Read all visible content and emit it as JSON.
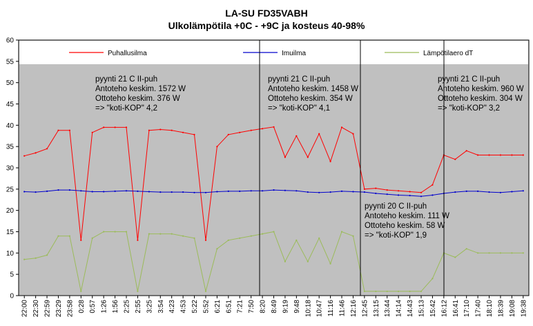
{
  "chart_data": {
    "type": "line",
    "title": "LA-SU FD35VABH",
    "subtitle": "Ulkolämpötila +0C - +9C ja kosteus 40-98%",
    "ylim": [
      0,
      60
    ],
    "yticks": [
      0,
      5,
      10,
      15,
      20,
      25,
      30,
      35,
      40,
      45,
      50,
      55,
      60
    ],
    "grid": false,
    "plot_background": "#c0c0c0",
    "legend_placement": "top",
    "categories": [
      "22:00",
      "22:30",
      "22:59",
      "23:29",
      "23:58",
      "0:28",
      "0:57",
      "1:26",
      "1:56",
      "2:25",
      "2:55",
      "3:25",
      "3:54",
      "4:23",
      "4:53",
      "5:22",
      "5:52",
      "6:21",
      "6:51",
      "7:21",
      "7:50",
      "8:20",
      "8:49",
      "9:19",
      "9:48",
      "10:18",
      "10:47",
      "11:16",
      "11:46",
      "12:16",
      "12:45",
      "13:15",
      "13:44",
      "14:14",
      "14:43",
      "15:13",
      "15:42",
      "16:12",
      "16:41",
      "17:10",
      "17:40",
      "18:10",
      "18:39",
      "19:08",
      "19:38"
    ],
    "series": [
      {
        "name": "Puhallusilma",
        "color": "#ff0000",
        "values": [
          32.8,
          33.5,
          34.5,
          38.8,
          38.8,
          13,
          38.3,
          39.5,
          39.5,
          39.5,
          13,
          38.8,
          39,
          38.8,
          38.3,
          37.8,
          13,
          35,
          37.8,
          38.3,
          38.8,
          39.2,
          39.6,
          32.5,
          37.5,
          32.5,
          38,
          31.5,
          39.5,
          38,
          25,
          25.2,
          24.8,
          24.6,
          24.4,
          24.2,
          26,
          33,
          32,
          34,
          33,
          33,
          33,
          33,
          33
        ]
      },
      {
        "name": "Imuilma",
        "color": "#0000cc",
        "values": [
          24.4,
          24.3,
          24.5,
          24.8,
          24.8,
          24.6,
          24.4,
          24.4,
          24.5,
          24.6,
          24.5,
          24.4,
          24.3,
          24.3,
          24.3,
          24.2,
          24.2,
          24.4,
          24.5,
          24.5,
          24.6,
          24.6,
          24.8,
          24.7,
          24.6,
          24.3,
          24.2,
          24.3,
          24.5,
          24.4,
          24.3,
          24,
          23.8,
          23.6,
          23.5,
          23.3,
          23.6,
          24,
          24.3,
          24.5,
          24.5,
          24.3,
          24.2,
          24.4,
          24.6
        ]
      },
      {
        "name": "Lämpötilaero dT",
        "color": "#9bbb59",
        "values": [
          8.5,
          8.8,
          9.5,
          14,
          14,
          1,
          13.5,
          15,
          15,
          15,
          1,
          14.5,
          14.5,
          14.5,
          14,
          13.5,
          1,
          11,
          13,
          13.5,
          14,
          14.5,
          15,
          8,
          13,
          8,
          13.5,
          7.5,
          15,
          14,
          1,
          1,
          1,
          1,
          1,
          1,
          4,
          10,
          9,
          11,
          10,
          10,
          10,
          10,
          10
        ]
      }
    ],
    "annotations": [
      [
        "pyynti 21 C II-puh",
        "Antoteho keskim. 1572 W",
        "Ottoteho keskim. 376 W",
        "=> \"koti-KOP\" 4,2"
      ],
      [
        "pyynti 21 C II-puh",
        "Antoteho keskim. 1458 W",
        "Ottoteho keskim. 354 W",
        "=> \"koti-KOP\" 4,1"
      ],
      [
        "pyynti 21 C II-puh",
        "Antoteho keskim. 960 W",
        "Ottoteho keskim. 304 W",
        "=> \"koti-KOP\" 3,2"
      ],
      [
        "pyynti 20 C II-puh",
        "Antoteho keskim. 111 W",
        "Ottoteho keskim. 58 W",
        "=> \"koti-KOP\"  1,9"
      ]
    ]
  }
}
